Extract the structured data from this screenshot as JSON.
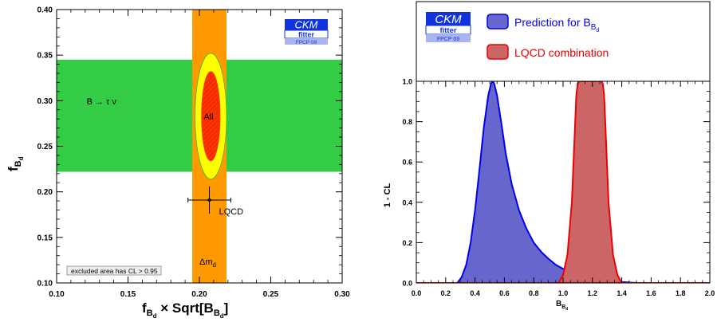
{
  "chart_data": [
    {
      "type": "contour",
      "xlabel": {
        "main": "f",
        "sub": "B",
        "subsub": "d",
        "mid": " × Sqrt[B",
        "sub2": "B",
        "subsub2": "d",
        "end": "]"
      },
      "ylabel": {
        "main": "f",
        "sub": "B",
        "subsub": "d"
      },
      "xlim": [
        0.1,
        0.3
      ],
      "ylim": [
        0.1,
        0.4
      ],
      "xticks": [
        "0.10",
        "0.15",
        "0.20",
        "0.25",
        "0.30"
      ],
      "yticks": [
        "0.10",
        "0.15",
        "0.20",
        "0.25",
        "0.30",
        "0.35",
        "0.40"
      ],
      "x_band": {
        "label": "Δm",
        "label_sub": "d",
        "range": [
          0.195,
          0.219
        ],
        "color": "#ff9900"
      },
      "y_band": {
        "label": "B → τ ν",
        "range": [
          0.222,
          0.345
        ],
        "color": "#33cc44"
      },
      "combined": {
        "label": "All",
        "center": [
          0.208,
          0.283
        ],
        "outer_half_widths": [
          0.011,
          0.069
        ],
        "inner_half_widths": [
          0.0065,
          0.049
        ],
        "outer_color": "#ffff00",
        "inner_color": "#ff3300"
      },
      "lqcd_point": {
        "label": "LQCD",
        "x": 0.207,
        "y": 0.191,
        "xerr": 0.015,
        "yerr": 0.015
      },
      "note": "excluded area has CL > 0.95",
      "logo": {
        "line1": "CKM",
        "line2": "fitter",
        "line3": "FPCP 09"
      }
    },
    {
      "type": "area",
      "xlabel": {
        "main": "B",
        "sub": "B",
        "subsub": "d"
      },
      "ylabel": "1 - CL",
      "xlim": [
        0.0,
        2.0
      ],
      "ylim": [
        0.0,
        1.0
      ],
      "xticks": [
        "0.0",
        "0.2",
        "0.4",
        "0.6",
        "0.8",
        "1.0",
        "1.2",
        "1.4",
        "1.6",
        "1.8",
        "2.0"
      ],
      "yticks": [
        "0.0",
        "0.2",
        "0.4",
        "0.6",
        "0.8",
        "1.0"
      ],
      "series": [
        {
          "name": "Prediction for B",
          "name_sub": "B",
          "name_subsub": "d",
          "fill": "#6666cc",
          "stroke": "#0000ee",
          "x": [
            0.0,
            0.28,
            0.31,
            0.34,
            0.37,
            0.4,
            0.43,
            0.46,
            0.49,
            0.51,
            0.52,
            0.53,
            0.55,
            0.58,
            0.61,
            0.65,
            0.7,
            0.75,
            0.8,
            0.85,
            0.9,
            0.95,
            1.0,
            1.05,
            1.1,
            1.15,
            1.2,
            1.25,
            1.3,
            1.4,
            1.5,
            2.0
          ],
          "y": [
            0.0,
            0.0,
            0.03,
            0.09,
            0.2,
            0.36,
            0.56,
            0.77,
            0.93,
            0.99,
            1.0,
            0.99,
            0.93,
            0.79,
            0.64,
            0.49,
            0.36,
            0.27,
            0.2,
            0.155,
            0.12,
            0.09,
            0.07,
            0.055,
            0.04,
            0.03,
            0.022,
            0.015,
            0.01,
            0.005,
            0.0,
            0.0
          ]
        },
        {
          "name": "LQCD combination",
          "fill": "#cc6666",
          "stroke": "#ee0000",
          "x": [
            0.0,
            0.97,
            1.0,
            1.03,
            1.06,
            1.08,
            1.09,
            1.1,
            1.11,
            1.26,
            1.27,
            1.28,
            1.29,
            1.31,
            1.34,
            1.37,
            1.4,
            2.0
          ],
          "y": [
            0.0,
            0.0,
            0.04,
            0.14,
            0.4,
            0.75,
            0.93,
            0.99,
            1.0,
            1.0,
            0.99,
            0.93,
            0.75,
            0.4,
            0.14,
            0.04,
            0.0,
            0.0
          ]
        }
      ],
      "logo": {
        "line1": "CKM",
        "line2": "fitter",
        "line3": "FPCP 09"
      }
    }
  ]
}
